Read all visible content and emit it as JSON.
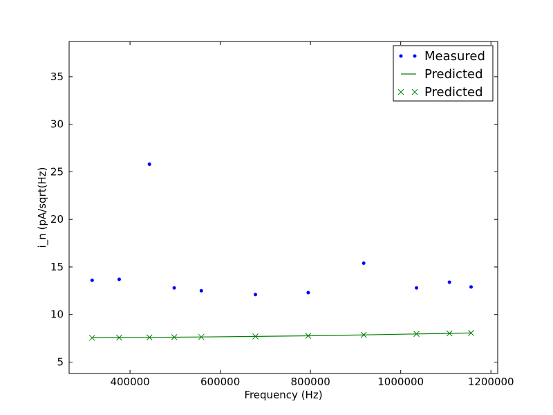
{
  "chart_data": {
    "type": "scatter",
    "title": "",
    "xlabel": "Frequency (Hz)",
    "ylabel": "i_n (pA/sqrt(Hz)",
    "xlim": [
      265000,
      1215000
    ],
    "ylim": [
      3.8,
      38.7
    ],
    "xticks": [
      400000,
      600000,
      800000,
      1000000,
      1200000
    ],
    "xtick_labels": [
      "400000",
      "600000",
      "800000",
      "1000000",
      "1200000"
    ],
    "yticks": [
      5,
      10,
      15,
      20,
      25,
      30,
      35
    ],
    "ytick_labels": [
      "5",
      "10",
      "15",
      "20",
      "25",
      "30",
      "35"
    ],
    "grid": false,
    "legend_position": "top-right",
    "x": [
      316000,
      376000,
      443000,
      498000,
      558000,
      678000,
      795000,
      918000,
      1035000,
      1108000,
      1156000
    ],
    "series": [
      {
        "name": "Measured",
        "style": "dots",
        "color": "#0000ff",
        "values": [
          13.6,
          13.7,
          25.8,
          12.8,
          12.5,
          12.1,
          12.3,
          15.4,
          12.8,
          13.4,
          12.9
        ]
      },
      {
        "name": "Predicted",
        "style": "line",
        "color": "#008000",
        "values": [
          7.55,
          7.57,
          7.6,
          7.62,
          7.64,
          7.7,
          7.76,
          7.86,
          7.96,
          8.02,
          8.06
        ]
      },
      {
        "name": "Predicted",
        "style": "x-markers",
        "color": "#008000",
        "values": [
          7.55,
          7.57,
          7.6,
          7.62,
          7.64,
          7.7,
          7.76,
          7.86,
          7.96,
          8.02,
          8.06
        ]
      }
    ]
  }
}
